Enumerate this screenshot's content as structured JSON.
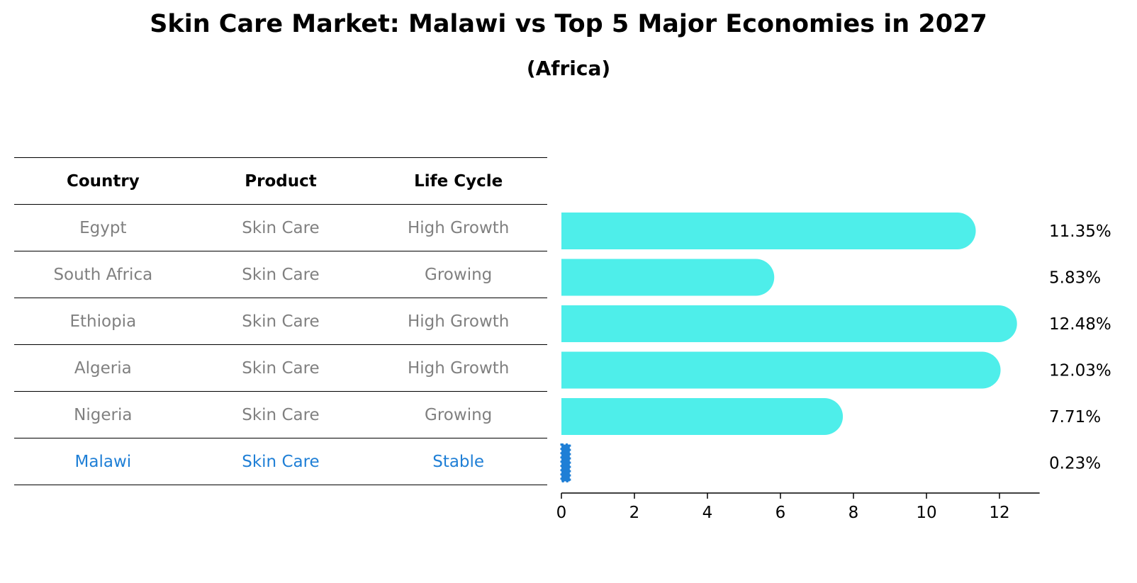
{
  "header": {
    "title": "Skin Care Market: Malawi vs Top 5 Major Economies in 2027",
    "subtitle": "(Africa)"
  },
  "table": {
    "columns": [
      "Country",
      "Product",
      "Life Cycle"
    ],
    "rows": [
      {
        "country": "Egypt",
        "product": "Skin Care",
        "life_cycle": "High Growth",
        "highlight": false
      },
      {
        "country": "South Africa",
        "product": "Skin Care",
        "life_cycle": "Growing",
        "highlight": false
      },
      {
        "country": "Ethiopia",
        "product": "Skin Care",
        "life_cycle": "High Growth",
        "highlight": false
      },
      {
        "country": "Algeria",
        "product": "Skin Care",
        "life_cycle": "High Growth",
        "highlight": false
      },
      {
        "country": "Nigeria",
        "product": "Skin Care",
        "life_cycle": "Growing",
        "highlight": false
      },
      {
        "country": "Malawi",
        "product": "Skin Care",
        "life_cycle": "Stable",
        "highlight": true
      }
    ]
  },
  "colors": {
    "bar": "#4eeeea",
    "highlight_bar": "#1f7fd6",
    "table_text": "#808080",
    "highlight_text": "#1f7fd6"
  },
  "chart_data": {
    "type": "bar",
    "orientation": "horizontal",
    "title": "Skin Care Market: Malawi vs Top 5 Major Economies in 2027",
    "subtitle": "(Africa)",
    "categories": [
      "Egypt",
      "South Africa",
      "Ethiopia",
      "Algeria",
      "Nigeria",
      "Malawi"
    ],
    "values": [
      11.35,
      5.83,
      12.48,
      12.03,
      7.71,
      0.23
    ],
    "data_labels": [
      "11.35%",
      "5.83%",
      "12.48%",
      "12.03%",
      "7.71%",
      "0.23%"
    ],
    "xlim": [
      0,
      13.1
    ],
    "xticks": [
      0,
      2,
      4,
      6,
      8,
      10,
      12
    ],
    "grid": false,
    "legend": "none"
  }
}
